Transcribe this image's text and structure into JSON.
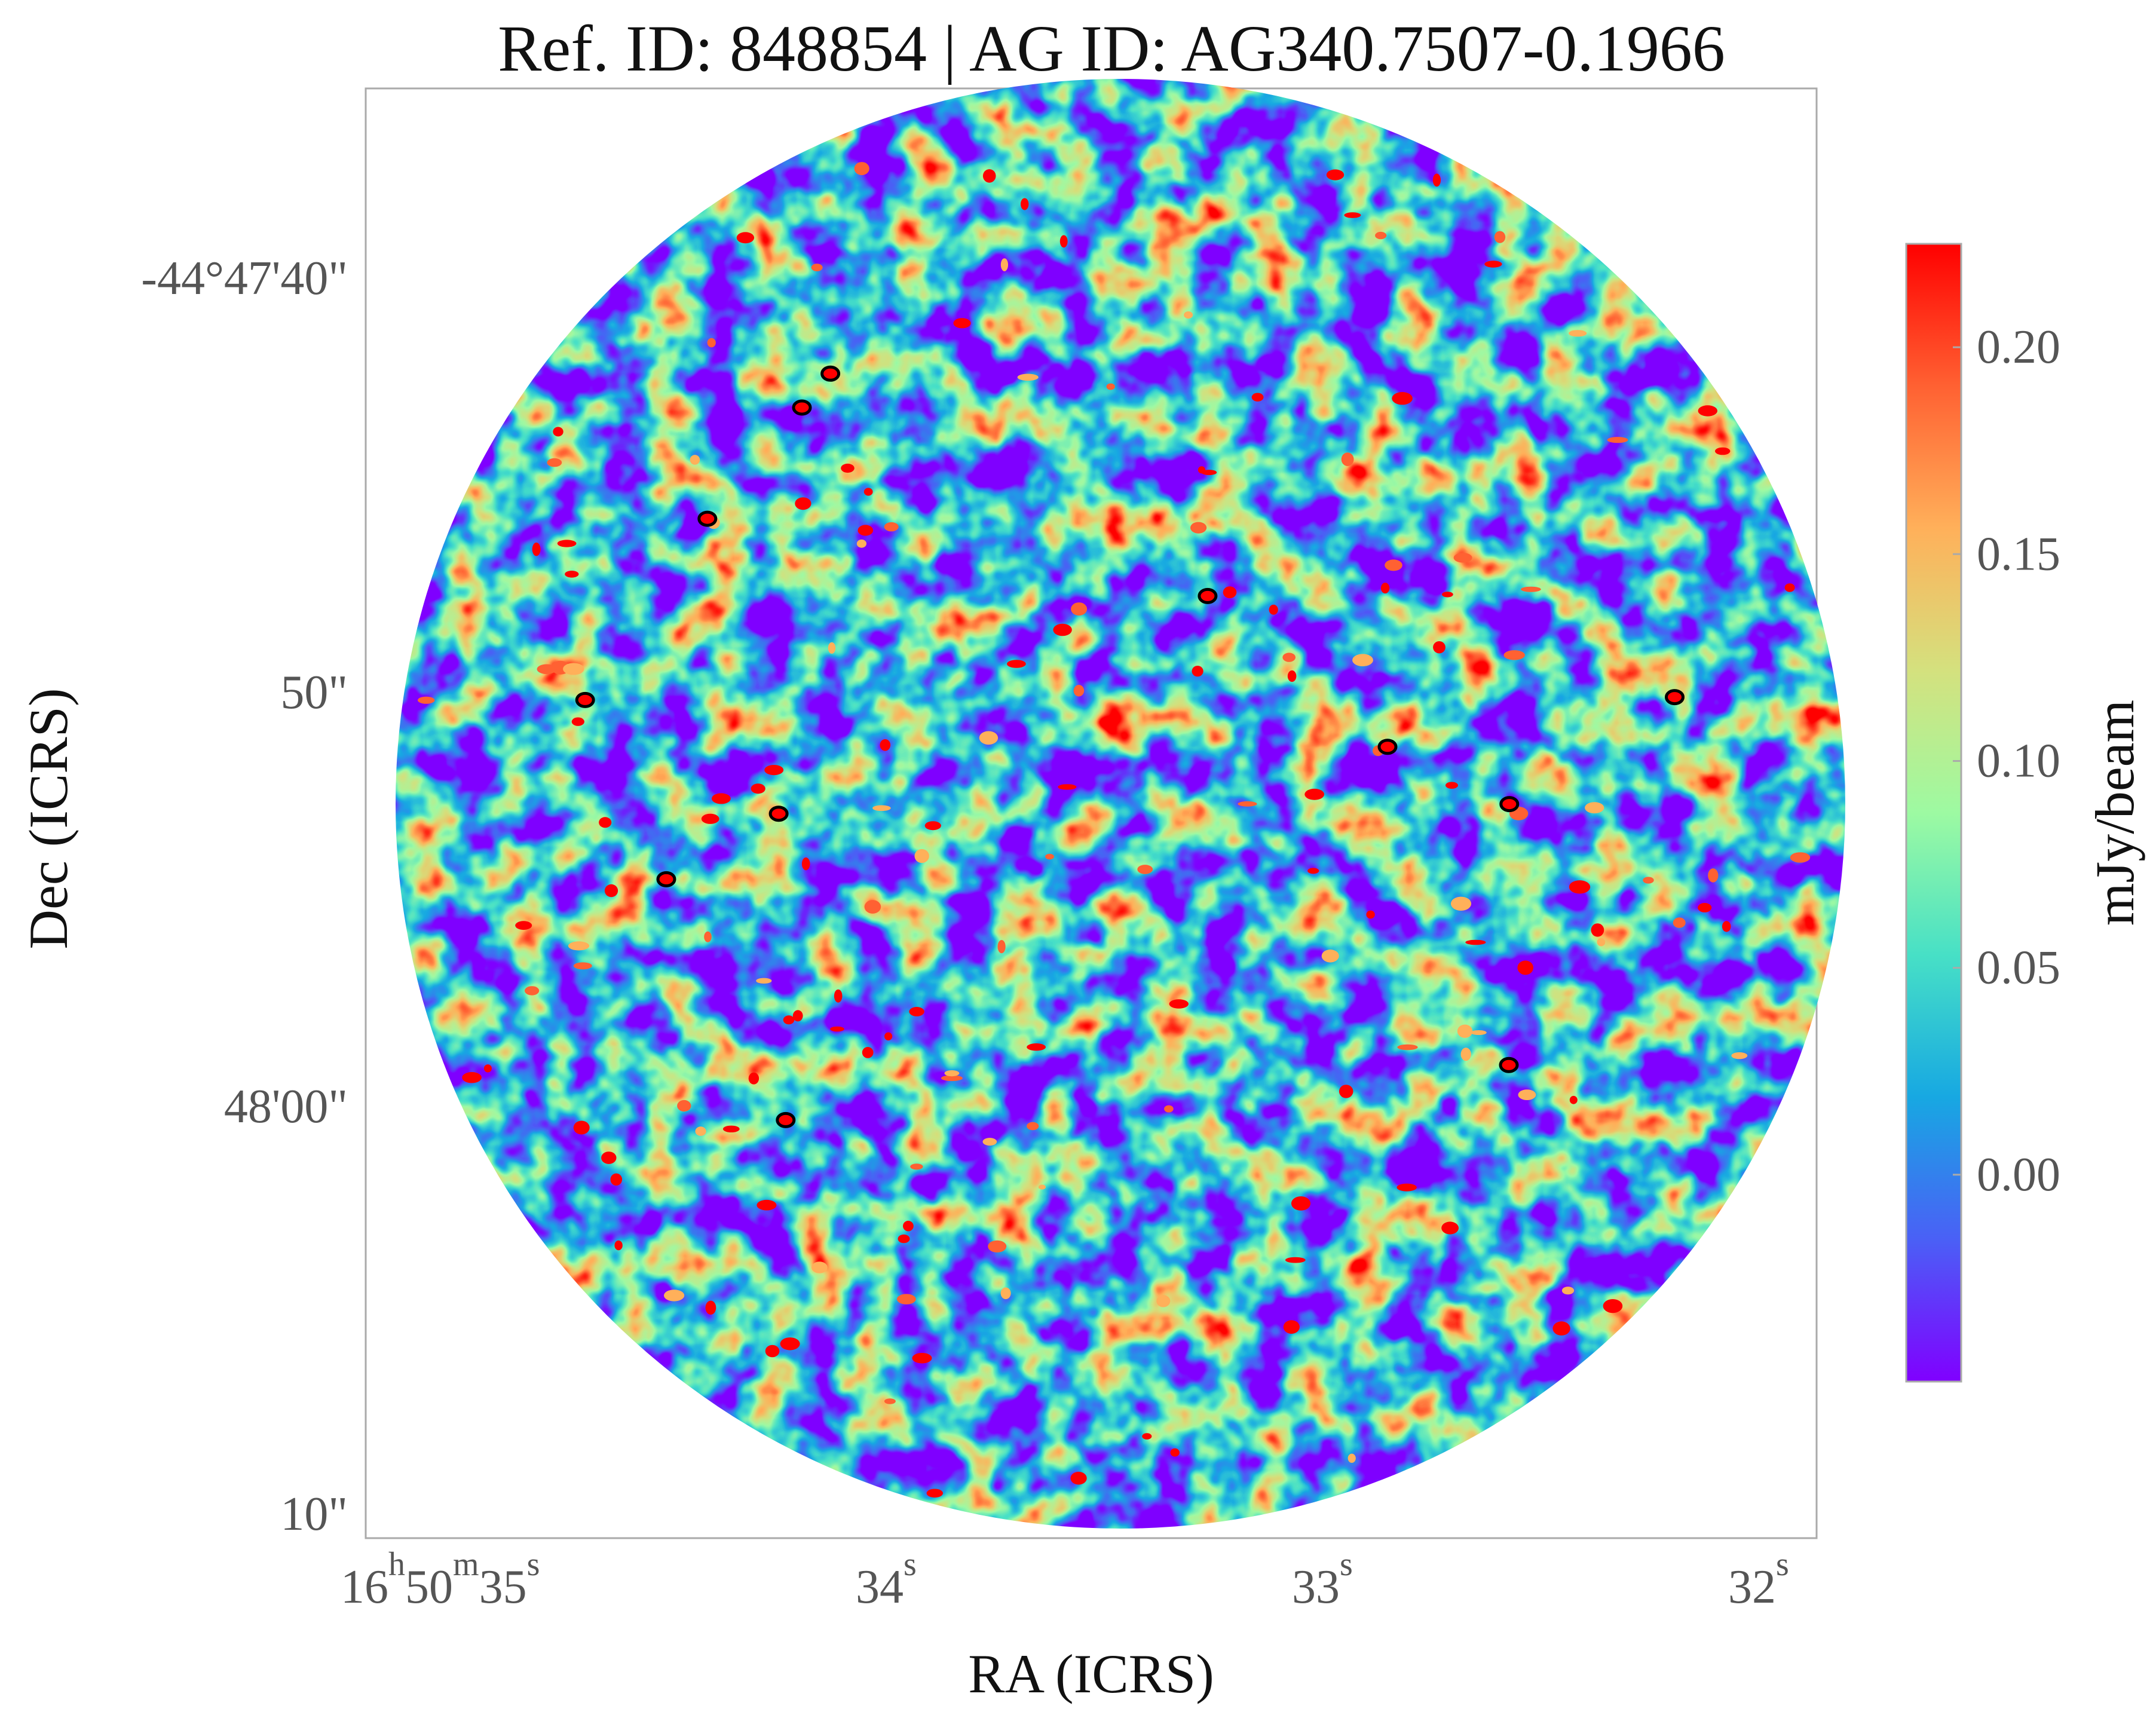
{
  "chart_data": {
    "type": "heatmap",
    "title": "Ref. ID: 848854 | AG ID: AG340.7507-0.1966",
    "xlabel": "RA (ICRS)",
    "ylabel": "Dec (ICRS)",
    "x_ticks": [
      {
        "h": "16",
        "m": "50",
        "s": "35"
      },
      {
        "s": "34"
      },
      {
        "s": "33"
      },
      {
        "s": "32"
      }
    ],
    "y_ticks": [
      "-44°47'40\"",
      "50\"",
      "48'00\"",
      "10\""
    ],
    "colorbar": {
      "label": "mJy/beam",
      "range": [
        -0.05,
        0.225
      ],
      "ticks": [
        "0.20",
        "0.15",
        "0.10",
        "0.05",
        "0.00"
      ],
      "tick_values": [
        0.2,
        0.15,
        0.1,
        0.05,
        0.0
      ],
      "colormap": "rainbow"
    },
    "grid": false,
    "legend": "none",
    "footprint": "circular",
    "field": "noise-dominated continuum map with a few compact peaks above 0.2 mJy/beam"
  },
  "colors": {
    "axes_frame": "#aaaaaa",
    "cmap": [
      "#8000ff",
      "#4a60f6",
      "#17a8e2",
      "#47e0c6",
      "#9dfaa2",
      "#d4e17e",
      "#ffb05a",
      "#ff6132",
      "#ff0000"
    ],
    "peak_outline": "#000000"
  }
}
